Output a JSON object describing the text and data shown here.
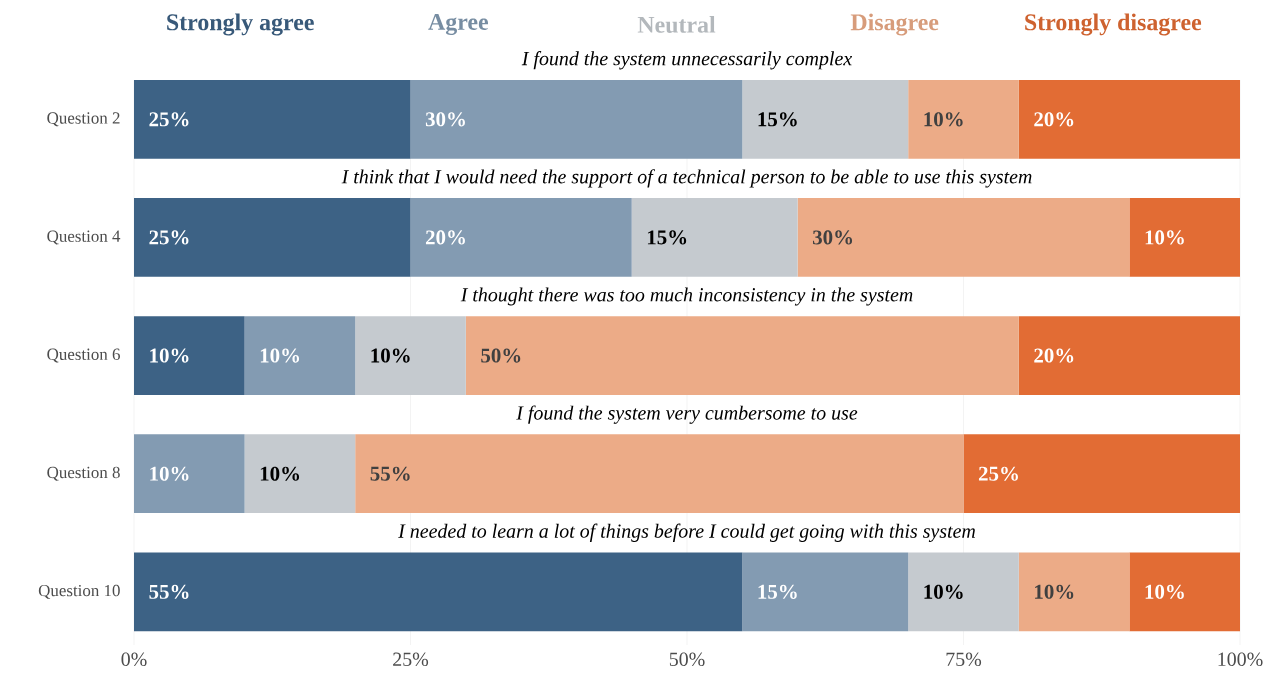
{
  "chart_data": {
    "type": "bar",
    "orientation": "horizontal",
    "stacked": true,
    "grid": "x",
    "legend": "top",
    "categories": [
      "Question 2",
      "Question 4",
      "Question 6",
      "Question 8",
      "Question 10"
    ],
    "series": [
      {
        "name": "Strongly agree",
        "color": "#3d6285",
        "values": [
          25,
          25,
          10,
          0,
          55
        ],
        "value_labels": [
          "25%",
          "25%",
          "10%",
          null,
          "55%"
        ]
      },
      {
        "name": "Agree",
        "color": "#839bb2",
        "values": [
          30,
          20,
          10,
          10,
          15
        ],
        "value_labels": [
          "30%",
          "20%",
          "10%",
          "10%",
          "15%"
        ]
      },
      {
        "name": "Neutral",
        "color": "#c5cacf",
        "values": [
          15,
          15,
          10,
          10,
          10
        ],
        "value_labels": [
          "15%",
          "15%",
          "10%",
          "10%",
          "10%"
        ]
      },
      {
        "name": "Disagree",
        "color": "#ecab87",
        "values": [
          10,
          30,
          50,
          55,
          10
        ],
        "value_labels": [
          "10%",
          "30%",
          "50%",
          "55%",
          "10%"
        ]
      },
      {
        "name": "Strongly disagree",
        "color": "#e26c34",
        "values": [
          20,
          10,
          20,
          25,
          10
        ],
        "value_labels": [
          "20%",
          "10%",
          "20%",
          "25%",
          "10%"
        ]
      }
    ],
    "xlim": [
      0,
      100
    ],
    "xticks": [
      {
        "value": 0,
        "label": "0%"
      },
      {
        "value": 25,
        "label": "25%"
      },
      {
        "value": 50,
        "label": "50%"
      },
      {
        "value": 75,
        "label": "75%"
      },
      {
        "value": 100,
        "label": "100%"
      }
    ],
    "annotations": [
      "I found the system unnecessarily complex",
      "I think that I would need the support of a technical person to be able to use this system",
      "I thought there was too much inconsistency in the system",
      "I found the system very cumbersome to use",
      "I needed to learn a lot of things before I could get going with this system"
    ]
  }
}
